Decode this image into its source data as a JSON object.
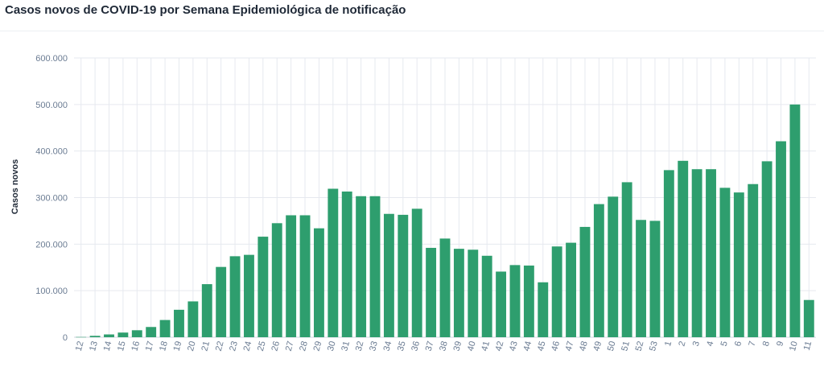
{
  "chart_data": {
    "type": "bar",
    "title": "Casos novos de COVID-19 por Semana Epidemiológica de notificação",
    "xlabel": "",
    "ylabel": "Casos novos",
    "ylim": [
      0,
      600000
    ],
    "y_ticks": [
      0,
      100000,
      200000,
      300000,
      400000,
      500000,
      600000
    ],
    "y_tick_labels": [
      "0",
      "100.000",
      "200.000",
      "300.000",
      "400.000",
      "500.000",
      "600.000"
    ],
    "grid": true,
    "colors": {
      "bar": "#2e9e6e",
      "grid": "#e6e9ef",
      "tick_text": "#6b7c93"
    },
    "categories": [
      "12",
      "13",
      "14",
      "15",
      "16",
      "17",
      "18",
      "19",
      "20",
      "21",
      "22",
      "23",
      "24",
      "25",
      "26",
      "27",
      "28",
      "29",
      "30",
      "31",
      "32",
      "33",
      "34",
      "35",
      "36",
      "37",
      "38",
      "39",
      "40",
      "41",
      "42",
      "43",
      "44",
      "45",
      "46",
      "47",
      "48",
      "49",
      "50",
      "51",
      "52",
      "53",
      "1",
      "2",
      "3",
      "4",
      "5",
      "6",
      "7",
      "8",
      "9",
      "10",
      "11"
    ],
    "values": [
      500,
      3000,
      6000,
      10000,
      15000,
      22000,
      37000,
      59000,
      77000,
      114000,
      151000,
      174000,
      177000,
      216000,
      245000,
      262000,
      262000,
      234000,
      319000,
      313000,
      303000,
      303000,
      265000,
      263000,
      276000,
      192000,
      212000,
      190000,
      188000,
      175000,
      141000,
      155000,
      154000,
      118000,
      195000,
      203000,
      237000,
      286000,
      302000,
      333000,
      252000,
      250000,
      359000,
      379000,
      361000,
      361000,
      321000,
      311000,
      329000,
      378000,
      421000,
      500000,
      80000
    ]
  }
}
